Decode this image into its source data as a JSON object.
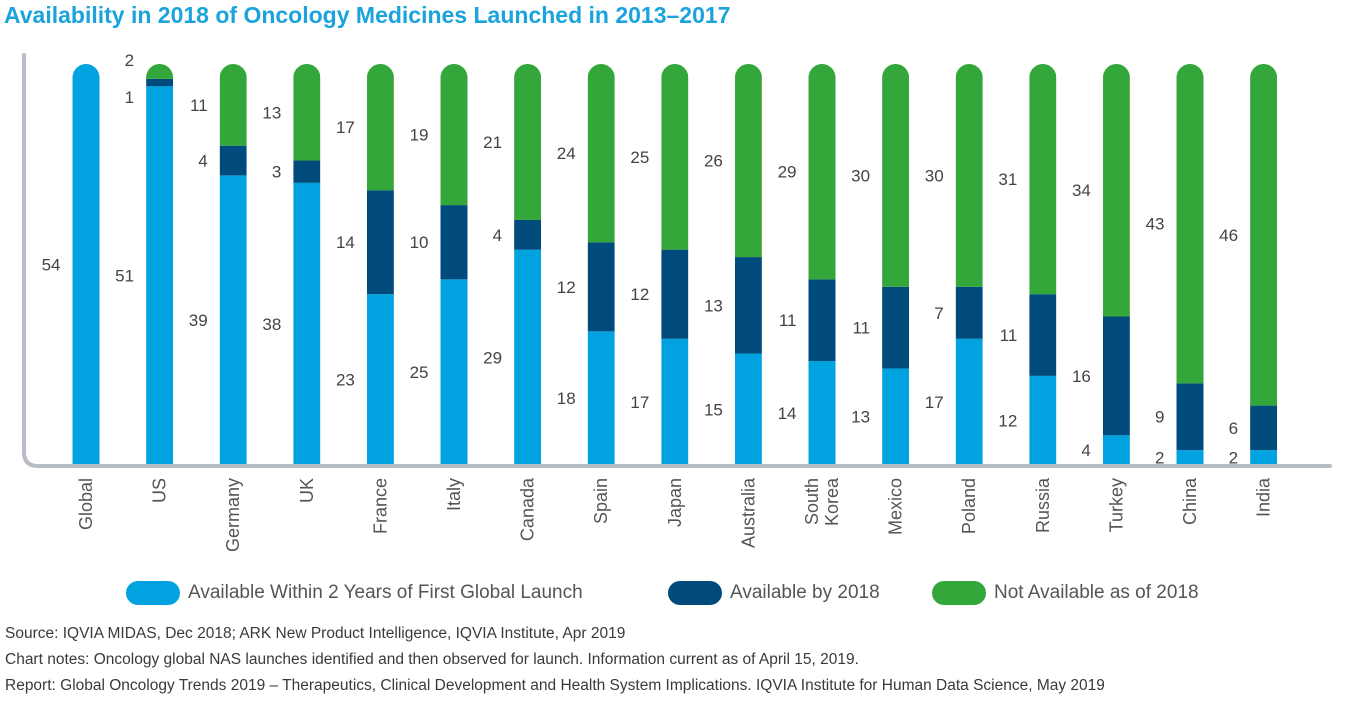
{
  "title": "Availability in 2018 of Oncology Medicines Launched in 2013–2017",
  "colors": {
    "within_2_years": "#00a3e0",
    "available_by_2018": "#004a7c",
    "not_available": "#33a73a",
    "axis": "#b8bcc4",
    "label": "#444444"
  },
  "chart_data": {
    "type": "bar",
    "stacked": true,
    "categories": [
      "Global",
      "US",
      "Germany",
      "UK",
      "France",
      "Italy",
      "Canada",
      "Spain",
      "Japan",
      "Australia",
      "South Korea",
      "Mexico",
      "Poland",
      "Russia",
      "Turkey",
      "China",
      "India"
    ],
    "series": [
      {
        "name": "Available Within 2 Years of First Global Launch",
        "values": [
          54,
          51,
          39,
          38,
          23,
          25,
          29,
          18,
          17,
          15,
          14,
          13,
          17,
          12,
          4,
          2,
          2
        ]
      },
      {
        "name": "Available by 2018",
        "values": [
          null,
          1,
          4,
          3,
          14,
          10,
          4,
          12,
          12,
          13,
          11,
          11,
          7,
          11,
          16,
          9,
          6
        ]
      },
      {
        "name": "Not Available as of 2018",
        "values": [
          null,
          2,
          11,
          13,
          17,
          19,
          21,
          24,
          25,
          26,
          29,
          30,
          30,
          31,
          34,
          43,
          46
        ]
      }
    ],
    "ylim": [
      0,
      54
    ],
    "legend_position": "bottom",
    "grid": false
  },
  "legend": [
    {
      "label": "Available Within 2 Years of First Global Launch",
      "color": "#00a3e0"
    },
    {
      "label": "Available by 2018",
      "color": "#004a7c"
    },
    {
      "label": "Not Available as of 2018",
      "color": "#33a73a"
    }
  ],
  "notes": {
    "source": "Source: IQVIA MIDAS, Dec 2018; ARK New Product Intelligence, IQVIA Institute, Apr 2019",
    "chart_notes": "Chart notes: Oncology global NAS launches identified and then observed for launch. Information current as of April 15, 2019.",
    "report": "Report: Global Oncology Trends 2019 – Therapeutics, Clinical Development and Health System Implications. IQVIA Institute for Human Data Science, May 2019"
  }
}
